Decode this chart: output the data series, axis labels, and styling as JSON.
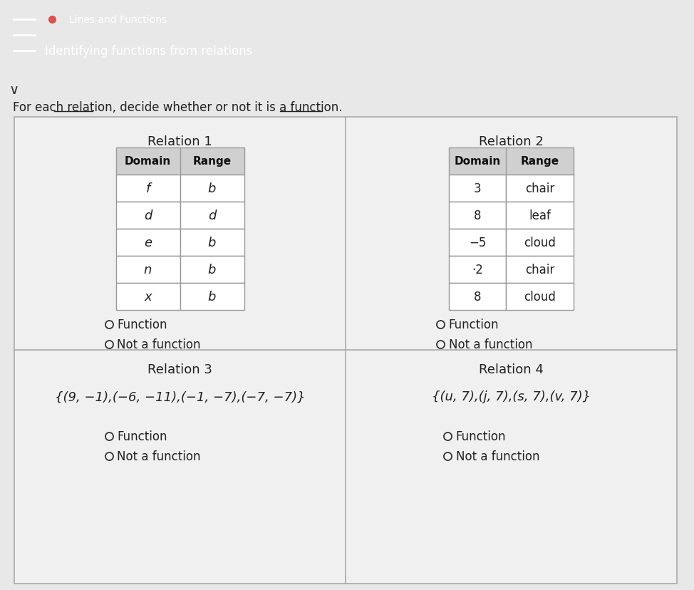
{
  "header_bg_color": "#2AACB8",
  "header_text_color": "#FFFFFF",
  "header_title": "Lines and Functions",
  "header_subtitle": "Identifying functions from relations",
  "body_bg_color": "#E8E8E8",
  "instruction_text": "For each relation, decide whether or not it is a function.",
  "relation1_title": "Relation 1",
  "relation1_domain": [
    "f",
    "d",
    "e",
    "n",
    "x"
  ],
  "relation1_range": [
    "b",
    "d",
    "b",
    "b",
    "b"
  ],
  "relation2_title": "Relation 2",
  "relation2_domain": [
    "3",
    "8",
    "-5",
    "·2",
    "8"
  ],
  "relation2_range": [
    "chair",
    "leaf",
    "cloud",
    "chair",
    "cloud"
  ],
  "relation3_title": "Relation 3",
  "relation3_set": "{(9, −1),(−6, −11),(−1, −7),(−7, −7)}",
  "relation4_title": "Relation 4",
  "relation4_set": "{(u, 7),(j, 7),(s, 7),(v, 7)}",
  "table_header_bg": "#D0D0D0",
  "table_border_color": "#999999",
  "radio_circle_color": "#333333",
  "cell_bg": "#FFFFFF",
  "domain_label": "Domain",
  "range_label": "Range",
  "outer_box_facecolor": "#F0F0F0",
  "outer_box_edgecolor": "#AAAAAA"
}
